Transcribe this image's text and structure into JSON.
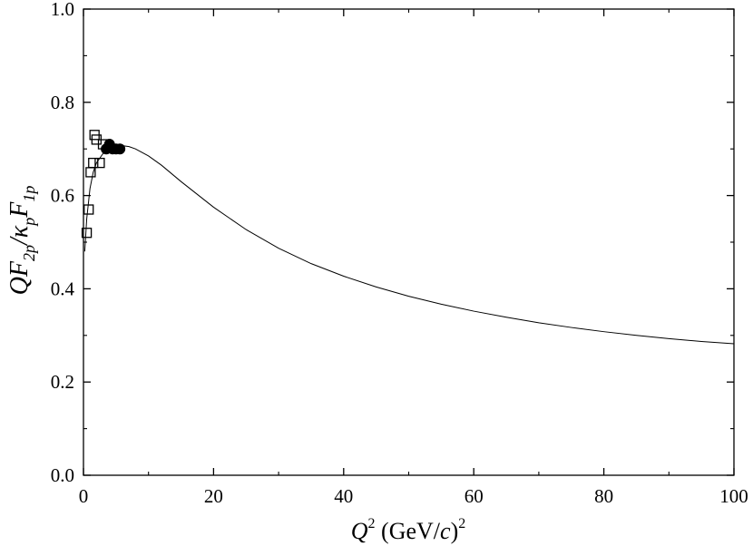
{
  "chart_data": {
    "type": "scatter",
    "xlabel": {
      "main": "Q",
      "sup": "2",
      "unit_open": " (GeV/",
      "unit_c": "c",
      "unit_close": ")",
      "unit_sup": "2"
    },
    "ylabel": {
      "p1": "QF",
      "s1": "2p",
      "p2": "/κ",
      "s2": "p",
      "p3": "F",
      "s3": "1p"
    },
    "xlim": [
      0,
      100
    ],
    "ylim": [
      0.0,
      1.0
    ],
    "x_ticks": [
      0,
      20,
      40,
      60,
      80,
      100
    ],
    "x_tick_labels": [
      "0",
      "20",
      "40",
      "60",
      "80",
      "100"
    ],
    "y_ticks": [
      0.0,
      0.2,
      0.4,
      0.6,
      0.8,
      1.0
    ],
    "y_tick_labels": [
      "0.0",
      "0.2",
      "0.4",
      "0.6",
      "0.8",
      "1.0"
    ],
    "grid": false,
    "legend": "none",
    "series": [
      {
        "kind": "line",
        "color": "#000000",
        "x": [
          0.2,
          0.5,
          1.0,
          1.5,
          2.0,
          3.0,
          4.0,
          5.0,
          6.0,
          7.0,
          8.0,
          10,
          12,
          15,
          20,
          25,
          30,
          35,
          40,
          45,
          50,
          55,
          60,
          65,
          70,
          75,
          80,
          85,
          90,
          95,
          100
        ],
        "y": [
          0.48,
          0.55,
          0.615,
          0.65,
          0.67,
          0.69,
          0.7,
          0.705,
          0.707,
          0.705,
          0.7,
          0.685,
          0.665,
          0.63,
          0.575,
          0.527,
          0.487,
          0.454,
          0.427,
          0.404,
          0.384,
          0.367,
          0.352,
          0.339,
          0.327,
          0.317,
          0.308,
          0.3,
          0.293,
          0.287,
          0.282
        ]
      },
      {
        "kind": "open-square",
        "color": "#000000",
        "x": [
          0.5,
          0.8,
          1.1,
          1.5,
          1.7,
          2.0,
          2.5,
          3.0
        ],
        "y": [
          0.52,
          0.57,
          0.65,
          0.67,
          0.73,
          0.72,
          0.67,
          0.71
        ]
      },
      {
        "kind": "filled-circle",
        "color": "#000000",
        "x": [
          3.5,
          4.0,
          4.5,
          5.0,
          5.6
        ],
        "y": [
          0.7,
          0.71,
          0.7,
          0.7,
          0.7
        ]
      }
    ]
  }
}
